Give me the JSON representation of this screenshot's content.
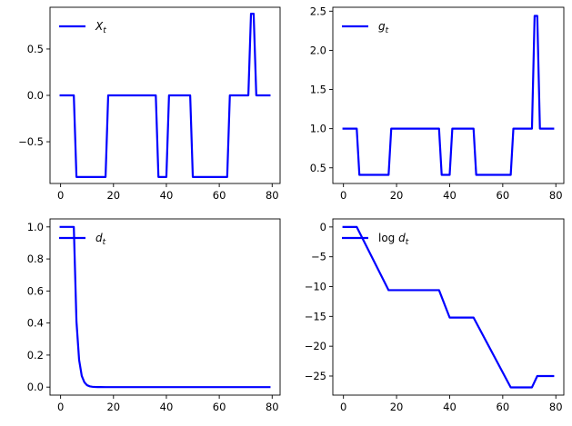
{
  "chart_data": [
    {
      "type": "line",
      "legend": {
        "position": "upper-left",
        "label_main": "X",
        "label_sub": "t",
        "label_prefix": ""
      },
      "color": "#0000ff",
      "xlim": [
        -4,
        83
      ],
      "ylim": [
        -0.95,
        0.95
      ],
      "xticks": [
        0,
        20,
        40,
        60,
        80
      ],
      "xticklabels": [
        "0",
        "20",
        "40",
        "60",
        "80"
      ],
      "yticks": [
        -0.5,
        0.0,
        0.5
      ],
      "yticklabels": [
        "−0.5",
        "0.0",
        "0.5"
      ],
      "grid": false,
      "series": [
        {
          "x": [
            0,
            5,
            6,
            17,
            18,
            36,
            37,
            40,
            41,
            49,
            50,
            63,
            64,
            71,
            72,
            73,
            74,
            79
          ],
          "y": [
            0,
            0,
            -0.88,
            -0.88,
            0,
            0,
            -0.88,
            -0.88,
            0,
            0,
            -0.88,
            -0.88,
            0,
            0,
            0.88,
            0.88,
            0,
            0
          ]
        }
      ]
    },
    {
      "type": "line",
      "legend": {
        "position": "upper-left",
        "label_main": "g",
        "label_sub": "t",
        "label_prefix": ""
      },
      "color": "#0000ff",
      "xlim": [
        -4,
        83
      ],
      "ylim": [
        0.3,
        2.55
      ],
      "xticks": [
        0,
        20,
        40,
        60,
        80
      ],
      "xticklabels": [
        "0",
        "20",
        "40",
        "60",
        "80"
      ],
      "yticks": [
        0.5,
        1.0,
        1.5,
        2.0,
        2.5
      ],
      "yticklabels": [
        "0.5",
        "1.0",
        "1.5",
        "2.0",
        "2.5"
      ],
      "grid": false,
      "series": [
        {
          "x": [
            0,
            5,
            6,
            17,
            18,
            36,
            37,
            40,
            41,
            49,
            50,
            63,
            64,
            71,
            72,
            73,
            74,
            79
          ],
          "y": [
            1,
            1,
            0.41,
            0.41,
            1,
            1,
            0.41,
            0.41,
            1,
            1,
            0.41,
            0.41,
            1,
            1,
            2.44,
            2.44,
            1,
            1
          ]
        }
      ]
    },
    {
      "type": "line",
      "legend": {
        "position": "upper-left",
        "label_main": "d",
        "label_sub": "t",
        "label_prefix": ""
      },
      "color": "#0000ff",
      "xlim": [
        -4,
        83
      ],
      "ylim": [
        -0.05,
        1.05
      ],
      "xticks": [
        0,
        20,
        40,
        60,
        80
      ],
      "xticklabels": [
        "0",
        "20",
        "40",
        "60",
        "80"
      ],
      "yticks": [
        0.0,
        0.2,
        0.4,
        0.6,
        0.8,
        1.0
      ],
      "yticklabels": [
        "0.0",
        "0.2",
        "0.4",
        "0.6",
        "0.8",
        "1.0"
      ],
      "grid": false,
      "series": [
        {
          "x": [
            0,
            5,
            6,
            7,
            8,
            9,
            10,
            11,
            12,
            13,
            14,
            15,
            17,
            20,
            30,
            40,
            60,
            79
          ],
          "y": [
            1,
            1,
            0.41,
            0.17,
            0.07,
            0.03,
            0.012,
            0.005,
            0.002,
            0.001,
            0.0004,
            0.0002,
            3e-05,
            0,
            0,
            0,
            0,
            0
          ]
        }
      ]
    },
    {
      "type": "line",
      "legend": {
        "position": "upper-left",
        "label_main": "d",
        "label_sub": "t",
        "label_prefix": "log "
      },
      "color": "#0000ff",
      "xlim": [
        -4,
        83
      ],
      "ylim": [
        -28.2,
        1.35
      ],
      "xticks": [
        0,
        20,
        40,
        60,
        80
      ],
      "xticklabels": [
        "0",
        "20",
        "40",
        "60",
        "80"
      ],
      "yticks": [
        -25,
        -20,
        -15,
        -10,
        -5,
        0
      ],
      "yticklabels": [
        "−25",
        "−20",
        "−15",
        "−10",
        "−5",
        "0"
      ],
      "grid": false,
      "series": [
        {
          "x": [
            0,
            5,
            17,
            36,
            40,
            49,
            63,
            71,
            73,
            79
          ],
          "y": [
            0,
            0,
            -10.6,
            -10.6,
            -15.2,
            -15.2,
            -26.9,
            -26.9,
            -25.0,
            -25.0
          ]
        }
      ]
    }
  ]
}
